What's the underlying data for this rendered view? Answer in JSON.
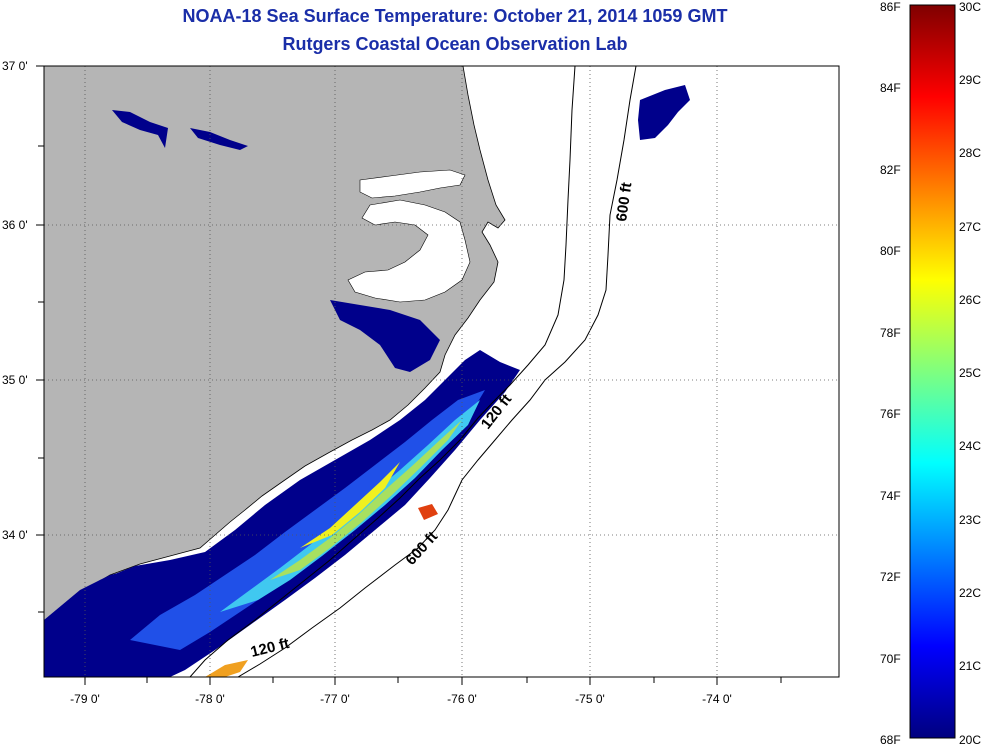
{
  "header": {
    "title": "NOAA-18 Sea Surface Temperature:  October 21, 2014 1059 GMT",
    "subtitle": "Rutgers Coastal Ocean Observation Lab"
  },
  "map": {
    "latitude_labels": [
      "37 0'",
      "36 0'",
      "35 0'",
      "34 0'"
    ],
    "longitude_labels": [
      "-79 0'",
      "-78 0'",
      "-77 0'",
      "-76 0'",
      "-75 0'",
      "-74 0'"
    ],
    "contour_labels": [
      "600 ft",
      "120 ft",
      "600 ft",
      "120 ft"
    ],
    "colors": {
      "land": "#b5b5b5",
      "no_data": "#ffffff",
      "grid": "#555555"
    }
  },
  "colorbar": {
    "fahrenheit_labels": [
      "86F",
      "84F",
      "82F",
      "80F",
      "78F",
      "76F",
      "74F",
      "72F",
      "70F",
      "68F"
    ],
    "celsius_labels": [
      "30C",
      "29C",
      "28C",
      "27C",
      "26C",
      "25C",
      "24C",
      "23C",
      "22C",
      "21C",
      "20C"
    ],
    "range_c": [
      20,
      30
    ],
    "colormap": [
      "#00007f",
      "#0000ff",
      "#007fff",
      "#00ffff",
      "#7fff7f",
      "#ffff00",
      "#ff7f00",
      "#ff0000",
      "#7f0000"
    ]
  }
}
